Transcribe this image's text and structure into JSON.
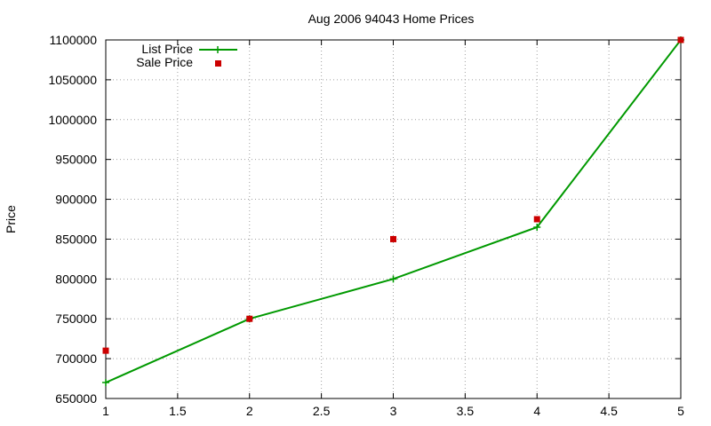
{
  "chart_data": {
    "type": "line",
    "title": "Aug 2006 94043 Home Prices",
    "xlabel": "",
    "ylabel": "Price",
    "xlim": [
      1,
      5
    ],
    "ylim": [
      650000,
      1100000
    ],
    "x_ticks": [
      "1",
      "1.5",
      "2",
      "2.5",
      "3",
      "3.5",
      "4",
      "4.5",
      "5"
    ],
    "y_ticks": [
      "650000",
      "700000",
      "750000",
      "800000",
      "850000",
      "900000",
      "950000",
      "1000000",
      "1050000",
      "1100000"
    ],
    "grid": true,
    "legend_position": "top-left",
    "series": [
      {
        "name": "List Price",
        "style": "line-with-plus-markers",
        "color": "#009900",
        "x": [
          1,
          2,
          3,
          4,
          5
        ],
        "y": [
          670000,
          750000,
          800000,
          865000,
          1100000
        ]
      },
      {
        "name": "Sale Price",
        "style": "square-markers",
        "color": "#cc0000",
        "x": [
          1,
          2,
          3,
          4,
          5
        ],
        "y": [
          710000,
          750000,
          850000,
          875000,
          1100000
        ]
      }
    ]
  }
}
